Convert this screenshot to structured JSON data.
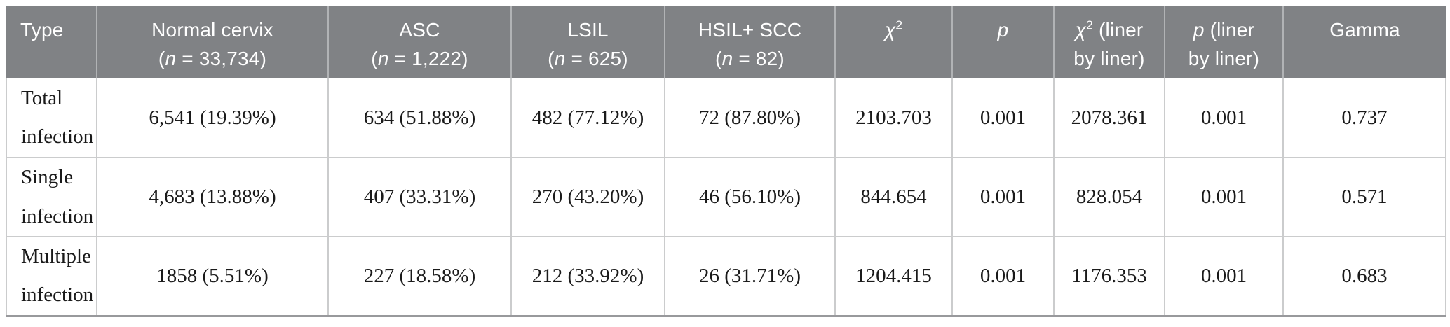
{
  "colors": {
    "header_background": "#808285",
    "header_text": "#ffffff",
    "body_text": "#1a1a1a",
    "grid_line": "#cbcccd",
    "header_divider": "#b1b3b5",
    "bottom_border": "#98999c"
  },
  "table": {
    "columns": [
      {
        "id": "type",
        "label": "Type"
      },
      {
        "id": "normal-cervix",
        "label": "Normal cervix\n(*n* = 33,734)"
      },
      {
        "id": "asc",
        "label": "ASC\n(*n* = 1,222)"
      },
      {
        "id": "lsil",
        "label": "LSIL\n(*n* = 625)"
      },
      {
        "id": "hsil-scc",
        "label": "HSIL+ SCC\n(*n* = 82)"
      },
      {
        "id": "chi-square",
        "label": "*χ*^2^"
      },
      {
        "id": "p",
        "label": "*p*"
      },
      {
        "id": "chi-square-liner",
        "label": "*χ*^2^ (liner\nby liner)"
      },
      {
        "id": "p-liner",
        "label": "*p* (liner\nby liner)"
      },
      {
        "id": "gamma",
        "label": "Gamma"
      }
    ],
    "rows": [
      {
        "cells": [
          "Total infection",
          "6,541 (19.39%)",
          "634 (51.88%)",
          "482 (77.12%)",
          "72 (87.80%)",
          "2103.703",
          "0.001",
          "2078.361",
          "0.001",
          "0.737"
        ]
      },
      {
        "cells": [
          "Single infection",
          "4,683 (13.88%)",
          "407 (33.31%)",
          "270 (43.20%)",
          "46 (56.10%)",
          "844.654",
          "0.001",
          "828.054",
          "0.001",
          "0.571"
        ]
      },
      {
        "cells": [
          "Multiple infection",
          "1858 (5.51%)",
          "227 (18.58%)",
          "212 (33.92%)",
          "26 (31.71%)",
          "1204.415",
          "0.001",
          "1176.353",
          "0.001",
          "0.683"
        ]
      }
    ]
  }
}
